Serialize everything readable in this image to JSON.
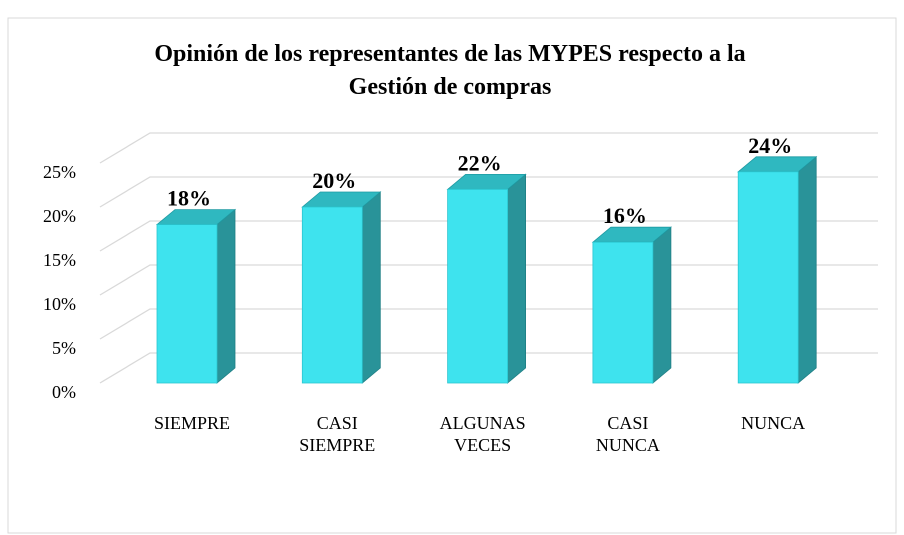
{
  "chart_data": {
    "type": "bar3d",
    "title": "Opinión de los representantes de las MYPES respecto a la Gestión de compras",
    "categories": [
      "SIEMPRE",
      "CASI SIEMPRE",
      "ALGUNAS VECES",
      "CASI NUNCA",
      "NUNCA"
    ],
    "values": [
      18,
      20,
      22,
      16,
      24
    ],
    "value_labels": [
      "18%",
      "20%",
      "22%",
      "16%",
      "24%"
    ],
    "color": "#3ee3ee",
    "ylim": [
      0,
      25
    ],
    "yticks": [
      {
        "value": 0,
        "label": "0%"
      },
      {
        "value": 5,
        "label": "5%"
      },
      {
        "value": 10,
        "label": "10%"
      },
      {
        "value": 15,
        "label": "15%"
      },
      {
        "value": 20,
        "label": "20%"
      },
      {
        "value": 25,
        "label": "25%"
      }
    ],
    "grid": true
  }
}
